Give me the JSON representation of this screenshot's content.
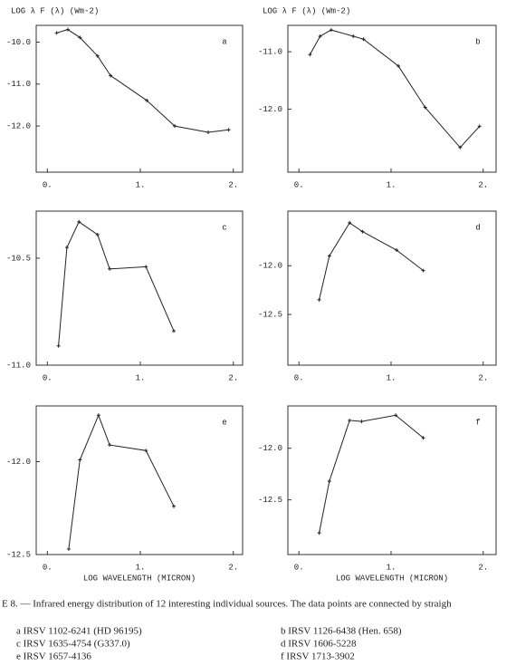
{
  "chart_data": [
    {
      "type": "line",
      "panel": "a",
      "ylabel": "LOG λ F (λ) (Wm-2)",
      "x": [
        0.1,
        0.22,
        0.35,
        0.54,
        0.68,
        1.07,
        1.37,
        1.73,
        1.95
      ],
      "values": [
        -9.78,
        -9.7,
        -9.89,
        -10.33,
        -10.8,
        -11.39,
        -12.0,
        -12.15,
        -12.09
      ],
      "xlim": [
        -0.12,
        2.1
      ],
      "ylim": [
        -13.1,
        -9.6
      ],
      "xticks": [
        {
          "value": 0,
          "label": "0."
        },
        {
          "value": 1,
          "label": "1."
        },
        {
          "value": 2,
          "label": "2."
        }
      ],
      "yticks": [
        {
          "value": -10,
          "label": "-10.0"
        },
        {
          "value": -11,
          "label": "-11.0"
        },
        {
          "value": -12,
          "label": "-12.0"
        }
      ],
      "color": "#222"
    },
    {
      "type": "line",
      "panel": "b",
      "ylabel": "LOG λ F (λ) (Wm-2)",
      "x": [
        0.12,
        0.23,
        0.35,
        0.59,
        0.7,
        1.08,
        1.37,
        1.75,
        1.96
      ],
      "values": [
        -11.05,
        -10.73,
        -10.62,
        -10.73,
        -10.78,
        -11.25,
        -11.97,
        -12.67,
        -12.3
      ],
      "xlim": [
        -0.12,
        2.14
      ],
      "ylim": [
        -13.1,
        -10.54
      ],
      "xticks": [
        {
          "value": 0,
          "label": "0."
        },
        {
          "value": 1,
          "label": "1."
        },
        {
          "value": 2,
          "label": "2."
        }
      ],
      "yticks": [
        {
          "value": -11,
          "label": "-11.0"
        },
        {
          "value": -12,
          "label": "-12.0"
        }
      ],
      "color": "#222"
    },
    {
      "type": "line",
      "panel": "c",
      "x": [
        0.12,
        0.21,
        0.34,
        0.54,
        0.67,
        1.06,
        1.36
      ],
      "values": [
        -10.91,
        -10.45,
        -10.33,
        -10.39,
        -10.55,
        -10.54,
        -10.84
      ],
      "xlim": [
        -0.12,
        2.1
      ],
      "ylim": [
        -11.0,
        -10.28
      ],
      "xticks": [
        {
          "value": 0,
          "label": "0."
        },
        {
          "value": 1,
          "label": "1."
        },
        {
          "value": 2,
          "label": "2."
        }
      ],
      "yticks": [
        -10.5,
        {
          "value": -11,
          "label": "-11.0"
        }
      ],
      "color": "#222"
    },
    {
      "type": "line",
      "panel": "d",
      "x": [
        0.22,
        0.33,
        0.55,
        0.69,
        1.06,
        1.35
      ],
      "values": [
        -12.35,
        -11.9,
        -11.56,
        -11.65,
        -11.84,
        -12.05
      ],
      "xlim": [
        -0.12,
        2.14
      ],
      "ylim": [
        -13.02,
        -11.44
      ],
      "xticks": [
        {
          "value": 0,
          "label": "0."
        },
        {
          "value": 1,
          "label": "1."
        },
        {
          "value": 2,
          "label": "2."
        }
      ],
      "yticks": [
        {
          "value": -12,
          "label": "-12.0"
        },
        -12.5
      ],
      "color": "#222"
    },
    {
      "type": "line",
      "panel": "e",
      "xlabel": "LOG  WAVELENGTH (MICRON)",
      "x": [
        0.23,
        0.35,
        0.55,
        0.67,
        1.06,
        1.36
      ],
      "values": [
        -12.47,
        -11.99,
        -11.75,
        -11.91,
        -11.94,
        -12.24
      ],
      "xlim": [
        -0.12,
        2.1
      ],
      "ylim": [
        -12.5,
        -11.7
      ],
      "xticks": [
        {
          "value": 0,
          "label": "0."
        },
        {
          "value": 1,
          "label": "1."
        },
        {
          "value": 2,
          "label": "2."
        }
      ],
      "yticks": [
        {
          "value": -12,
          "label": "-12.0"
        },
        -12.5
      ],
      "color": "#222"
    },
    {
      "type": "line",
      "panel": "f",
      "xlabel": "LOG  WAVELENGTH (MICRON)",
      "x": [
        0.22,
        0.33,
        0.55,
        0.68,
        1.05,
        1.35
      ],
      "values": [
        -12.82,
        -12.32,
        -11.73,
        -11.74,
        -11.68,
        -11.9
      ],
      "xlim": [
        -0.12,
        2.14
      ],
      "ylim": [
        -13.03,
        -11.59
      ],
      "xticks": [
        {
          "value": 0,
          "label": "0."
        },
        {
          "value": 1,
          "label": "1."
        },
        {
          "value": 2,
          "label": "2."
        }
      ],
      "yticks": [
        {
          "value": -12,
          "label": "-12.0"
        },
        -12.5
      ],
      "color": "#222"
    }
  ],
  "caption": "E 8. — Infrared energy distribution of 12 interesting individual sources. The data points are connected by straigh",
  "sources": [
    "a IRSV 1102-6241 (HD 96195)",
    "b IRSV 1126-6438 (Hen. 658)",
    "c IRSV 1635-4754 (G337.0)",
    "d IRSV 1606-5228",
    "e IRSV 1657-4136",
    "f IRSV 1713-3902"
  ]
}
